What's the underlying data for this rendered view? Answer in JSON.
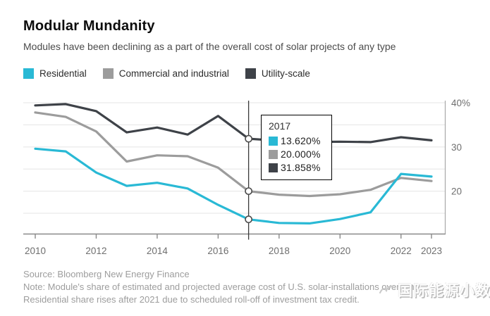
{
  "header": {
    "title": "Modular Mundanity",
    "subtitle": "Modules have been declining as a part of the overall cost of solar projects of any type"
  },
  "legend": [
    {
      "label": "Residential",
      "color": "#29b9d5"
    },
    {
      "label": "Commercial and industrial",
      "color": "#9c9c9c"
    },
    {
      "label": "Utility-scale",
      "color": "#3e4248"
    }
  ],
  "chart_data": {
    "type": "line",
    "title": "Modular Mundanity",
    "x": [
      2010,
      2011,
      2012,
      2013,
      2014,
      2015,
      2016,
      2017,
      2018,
      2019,
      2020,
      2021,
      2022,
      2023
    ],
    "series": [
      {
        "name": "Residential",
        "color": "#29b9d5",
        "values": [
          29.6,
          29.0,
          24.2,
          21.2,
          21.9,
          20.6,
          16.9,
          13.62,
          12.8,
          12.7,
          13.7,
          15.2,
          23.9,
          23.3
        ]
      },
      {
        "name": "Commercial and industrial",
        "color": "#9c9c9c",
        "values": [
          37.8,
          36.8,
          33.5,
          26.7,
          28.1,
          27.9,
          25.3,
          20.0,
          19.2,
          18.9,
          19.3,
          20.3,
          23.0,
          22.3
        ]
      },
      {
        "name": "Utility-scale",
        "color": "#3e4248",
        "values": [
          39.4,
          39.7,
          38.1,
          33.3,
          34.4,
          32.8,
          37.0,
          31.858,
          31.4,
          31.1,
          31.2,
          31.1,
          32.2,
          31.5
        ]
      }
    ],
    "xticks": [
      2010,
      2012,
      2014,
      2016,
      2018,
      2020,
      2022,
      2023
    ],
    "yticks": [
      {
        "value": 40,
        "label": "40%"
      },
      {
        "value": 35,
        "label": ""
      },
      {
        "value": 30,
        "label": "30"
      },
      {
        "value": 25,
        "label": ""
      },
      {
        "value": 20,
        "label": "20"
      },
      {
        "value": 15,
        "label": ""
      }
    ],
    "ylim": [
      11,
      42
    ],
    "grid": true,
    "legend_position": "top-left",
    "highlight_x": 2017
  },
  "tooltip": {
    "title": "2017",
    "rows": [
      {
        "value": "13.620%",
        "color": "#29b9d5"
      },
      {
        "value": "20.000%",
        "color": "#9c9c9c"
      },
      {
        "value": "31.858%",
        "color": "#3e4248"
      }
    ]
  },
  "footer": {
    "source": "Source: Bloomberg New Energy Finance",
    "note_line1": "Note: Module's share of estimated and projected average cost of U.S. solar-installations over time.",
    "note_line2": "Residential share rises after 2021 due to scheduled roll-off of investment tax credit."
  },
  "watermark": {
    "text": "国际能源小数据"
  }
}
